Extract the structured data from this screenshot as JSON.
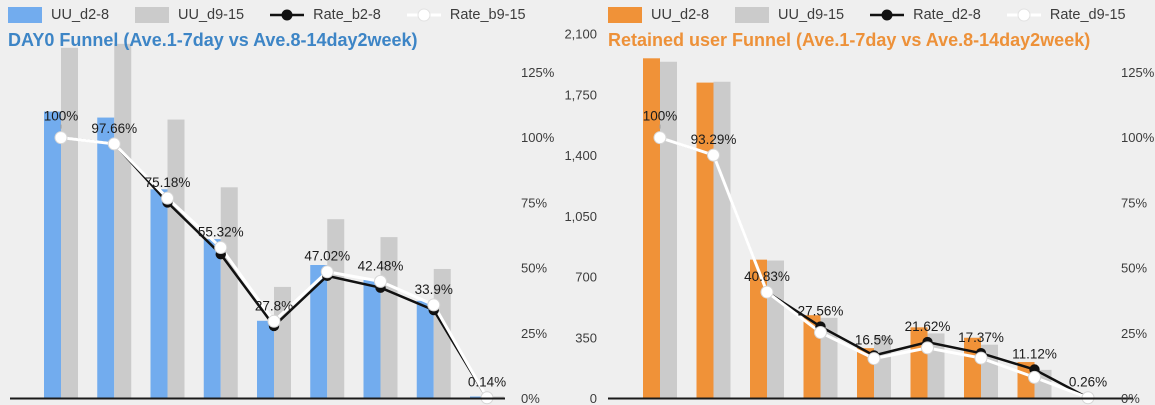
{
  "page": {
    "background": "#efefef"
  },
  "chart_data": [
    {
      "type": "bar+line combo",
      "title": "DAY0 Funnel (Ave.1-7day vs Ave.8-14day2week)",
      "title_color": "#3d85c6",
      "legend_position": "top-left",
      "grid": false,
      "categories": [
        "1",
        "2",
        "3",
        "4",
        "5",
        "6",
        "7",
        "8",
        "9"
      ],
      "x_axis_labels_visible": false,
      "bar_value_axis_visible": false,
      "bar_series": [
        {
          "name": "UU_d2-8",
          "color": "#72acee",
          "unit": "percent-of-plot-height (UU axis hidden)",
          "values": [
            72,
            70.5,
            52.5,
            40,
            19.5,
            33.5,
            30,
            24.5,
            0.5
          ]
        },
        {
          "name": "UU_d9-15",
          "color": "#cbcbcb",
          "unit": "percent-of-plot-height (UU axis hidden)",
          "values": [
            88,
            89,
            70,
            53,
            28,
            45,
            40.5,
            32.5,
            0.5
          ]
        }
      ],
      "line_series": [
        {
          "name": "Rate_b2-8",
          "color": "#111111",
          "marker": "black-dot",
          "values": [
            100,
            97.66,
            75.18,
            55.32,
            27.8,
            47.02,
            42.48,
            33.9,
            0.14
          ],
          "labels": [
            "100%",
            "97.66%",
            "75.18%",
            "55.32%",
            "27.8%",
            "47.02%",
            "42.48%",
            "33.9%",
            "0.14%"
          ]
        },
        {
          "name": "Rate_b9-15",
          "color": "#ffffff",
          "marker": "white-dot",
          "values": [
            100,
            97.6,
            76.8,
            57.9,
            29.6,
            48.6,
            44.9,
            35.9,
            0.3
          ],
          "labels": []
        }
      ],
      "right_axis": {
        "title": "",
        "ticks": [
          "0%",
          "25%",
          "50%",
          "75%",
          "100%",
          "125%"
        ],
        "tick_values": [
          0,
          25,
          50,
          75,
          100,
          125
        ],
        "range": [
          0,
          125
        ]
      }
    },
    {
      "type": "bar+line combo",
      "title": "Retained user Funnel (Ave.1-7day vs Ave.8-14day2week)",
      "title_color": "#ed9139",
      "legend_position": "top-left",
      "grid": false,
      "categories": [
        "1",
        "2",
        "3",
        "4",
        "5",
        "6",
        "7",
        "8",
        "9"
      ],
      "x_axis_labels_visible": false,
      "bar_value_axis_visible": true,
      "bar_series": [
        {
          "name": "UU_d2-8",
          "color": "#f09238",
          "unit": "users",
          "values": [
            1960,
            1820,
            800,
            480,
            290,
            410,
            350,
            210,
            5
          ]
        },
        {
          "name": "UU_d9-15",
          "color": "#cbcbcb",
          "unit": "users",
          "values": [
            1940,
            1825,
            795,
            465,
            360,
            375,
            310,
            165,
            5
          ]
        }
      ],
      "line_series": [
        {
          "name": "Rate_d2-8",
          "color": "#111111",
          "marker": "black-dot",
          "values": [
            100,
            93.29,
            40.83,
            27.56,
            16.5,
            21.62,
            17.37,
            11.12,
            0.26
          ],
          "labels": [
            "100%",
            "93.29%",
            "40.83%",
            "27.56%",
            "16.5%",
            "21.62%",
            "17.37%",
            "11.12%",
            "0.26%"
          ]
        },
        {
          "name": "Rate_d9-15",
          "color": "#ffffff",
          "marker": "white-dot",
          "values": [
            100,
            93.3,
            40.8,
            25.3,
            15.3,
            19.4,
            15.5,
            8.1,
            0.3
          ],
          "labels": []
        }
      ],
      "left_axis": {
        "title": "",
        "ticks": [
          "0",
          "350",
          "700",
          "1,050",
          "1,400",
          "1,750",
          "2,100"
        ],
        "tick_values": [
          0,
          350,
          700,
          1050,
          1400,
          1750,
          2100
        ],
        "range": [
          0,
          2100
        ]
      },
      "right_axis": {
        "title": "",
        "ticks": [
          "0%",
          "25%",
          "50%",
          "75%",
          "100%",
          "125%"
        ],
        "tick_values": [
          0,
          25,
          50,
          75,
          100,
          125
        ],
        "range": [
          0,
          125
        ]
      }
    }
  ]
}
